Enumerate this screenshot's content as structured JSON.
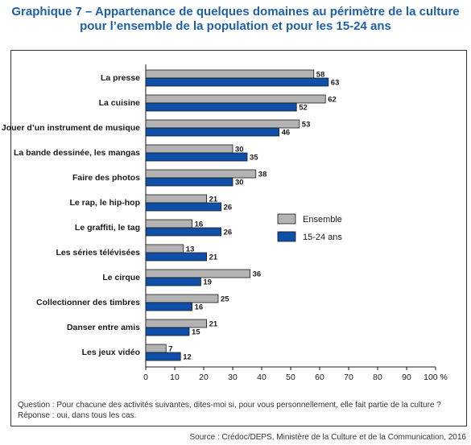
{
  "title_line1": "Graphique 7 – Appartenance de quelques domaines au périmètre de la culture",
  "title_line2": "pour l’ensemble de la population et pour les 15-24 ans",
  "note_line1": "Question : Pour chacune des activités suivantes, dites-moi si, pour vous personnellement, elle fait partie de la culture ?",
  "note_line2": "Réponse : oui, dans tous les cas.",
  "source": "Source : Crédoc/DEPS, Ministère de la Culture et de la Communication, 2016",
  "colors": {
    "ensemble": "#b3b3b3",
    "jeunes": "#0f4fa8",
    "title": "#1f5fa6"
  },
  "chart_data": {
    "type": "bar",
    "orientation": "horizontal",
    "categories": [
      "La presse",
      "La cuisine",
      "Jouer d’un instrument de musique",
      "La bande dessinée, les mangas",
      "Faire des photos",
      "Le rap, le hip-hop",
      "Le graffiti, le tag",
      "Les séries télévisées",
      "Le cirque",
      "Collectionner des timbres",
      "Danser entre amis",
      "Les jeux vidéo"
    ],
    "series": [
      {
        "name": "Ensemble",
        "values": [
          58,
          62,
          53,
          30,
          38,
          21,
          16,
          13,
          36,
          25,
          21,
          7
        ]
      },
      {
        "name": "15-24 ans",
        "values": [
          63,
          52,
          46,
          35,
          30,
          26,
          26,
          21,
          19,
          16,
          15,
          12
        ]
      }
    ],
    "xlim": [
      0,
      100
    ],
    "xticks": [
      "0",
      "10",
      "20",
      "30",
      "40",
      "50",
      "60",
      "70",
      "80",
      "90",
      "100 %"
    ],
    "legend_position": "right"
  }
}
